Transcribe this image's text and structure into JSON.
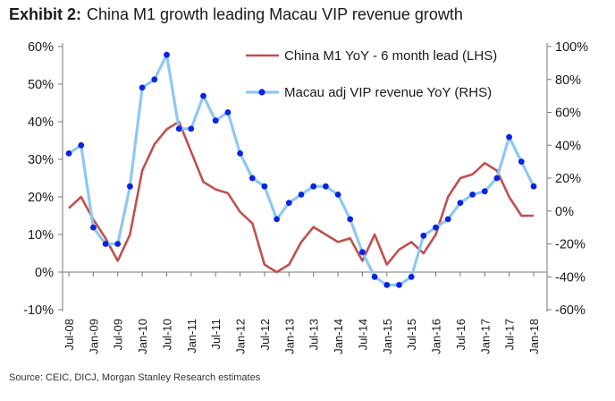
{
  "title": {
    "prefix": "Exhibit 2:",
    "text": "China M1 growth leading Macau VIP revenue growth"
  },
  "source": "Source: CEIC, DICJ, Morgan Stanley Research estimates",
  "chart_data": {
    "type": "line",
    "x": [
      "Jul-08",
      "Oct-08",
      "Jan-09",
      "Apr-09",
      "Jul-09",
      "Oct-09",
      "Jan-10",
      "Apr-10",
      "Jul-10",
      "Oct-10",
      "Jan-11",
      "Apr-11",
      "Jul-11",
      "Oct-11",
      "Jan-12",
      "Apr-12",
      "Jul-12",
      "Oct-12",
      "Jan-13",
      "Apr-13",
      "Jul-13",
      "Oct-13",
      "Jan-14",
      "Apr-14",
      "Jul-14",
      "Oct-14",
      "Jan-15",
      "Apr-15",
      "Jul-15",
      "Oct-15",
      "Jan-16",
      "Apr-16",
      "Jul-16",
      "Oct-16",
      "Jan-17",
      "Apr-17",
      "Jul-17",
      "Oct-17",
      "Jan-18"
    ],
    "x_tick_labels": [
      "Jul-08",
      "Jan-09",
      "Jul-09",
      "Jan-10",
      "Jul-10",
      "Jan-11",
      "Jul-11",
      "Jan-12",
      "Jul-12",
      "Jan-13",
      "Jul-13",
      "Jan-14",
      "Jul-14",
      "Jan-15",
      "Jul-15",
      "Jan-16",
      "Jul-16",
      "Jan-17",
      "Jul-17",
      "Jan-18"
    ],
    "series": [
      {
        "name": "China M1 YoY - 6 month lead (LHS)",
        "axis": "left",
        "color": "#c0504d",
        "values": [
          17,
          20,
          14,
          9,
          3,
          10,
          27,
          34,
          38,
          40,
          32,
          24,
          22,
          21,
          16,
          13,
          2,
          0,
          2,
          8,
          12,
          10,
          8,
          9,
          3,
          10,
          2,
          6,
          8,
          5,
          10,
          20,
          25,
          26,
          29,
          27,
          20,
          15,
          15
        ]
      },
      {
        "name": "Macau adj VIP revenue YoY (RHS)",
        "axis": "right",
        "color": "#8ec8f2",
        "marker_color": "#0a24e6",
        "values": [
          35,
          40,
          -10,
          -20,
          -20,
          15,
          75,
          80,
          95,
          50,
          50,
          70,
          55,
          60,
          35,
          20,
          15,
          -5,
          5,
          10,
          15,
          15,
          10,
          -5,
          -25,
          -40,
          -45,
          -45,
          -40,
          -15,
          -10,
          -5,
          5,
          10,
          12,
          20,
          45,
          30,
          15
        ]
      }
    ],
    "y_left": {
      "ticks": [
        "60%",
        "50%",
        "40%",
        "30%",
        "20%",
        "10%",
        "0%",
        "-10%"
      ],
      "range": [
        -10,
        60
      ]
    },
    "y_right": {
      "ticks": [
        "100%",
        "80%",
        "60%",
        "40%",
        "20%",
        "0%",
        "-20%",
        "-40%",
        "-60%"
      ],
      "range": [
        -60,
        100
      ]
    },
    "legend_position": "top-right"
  }
}
